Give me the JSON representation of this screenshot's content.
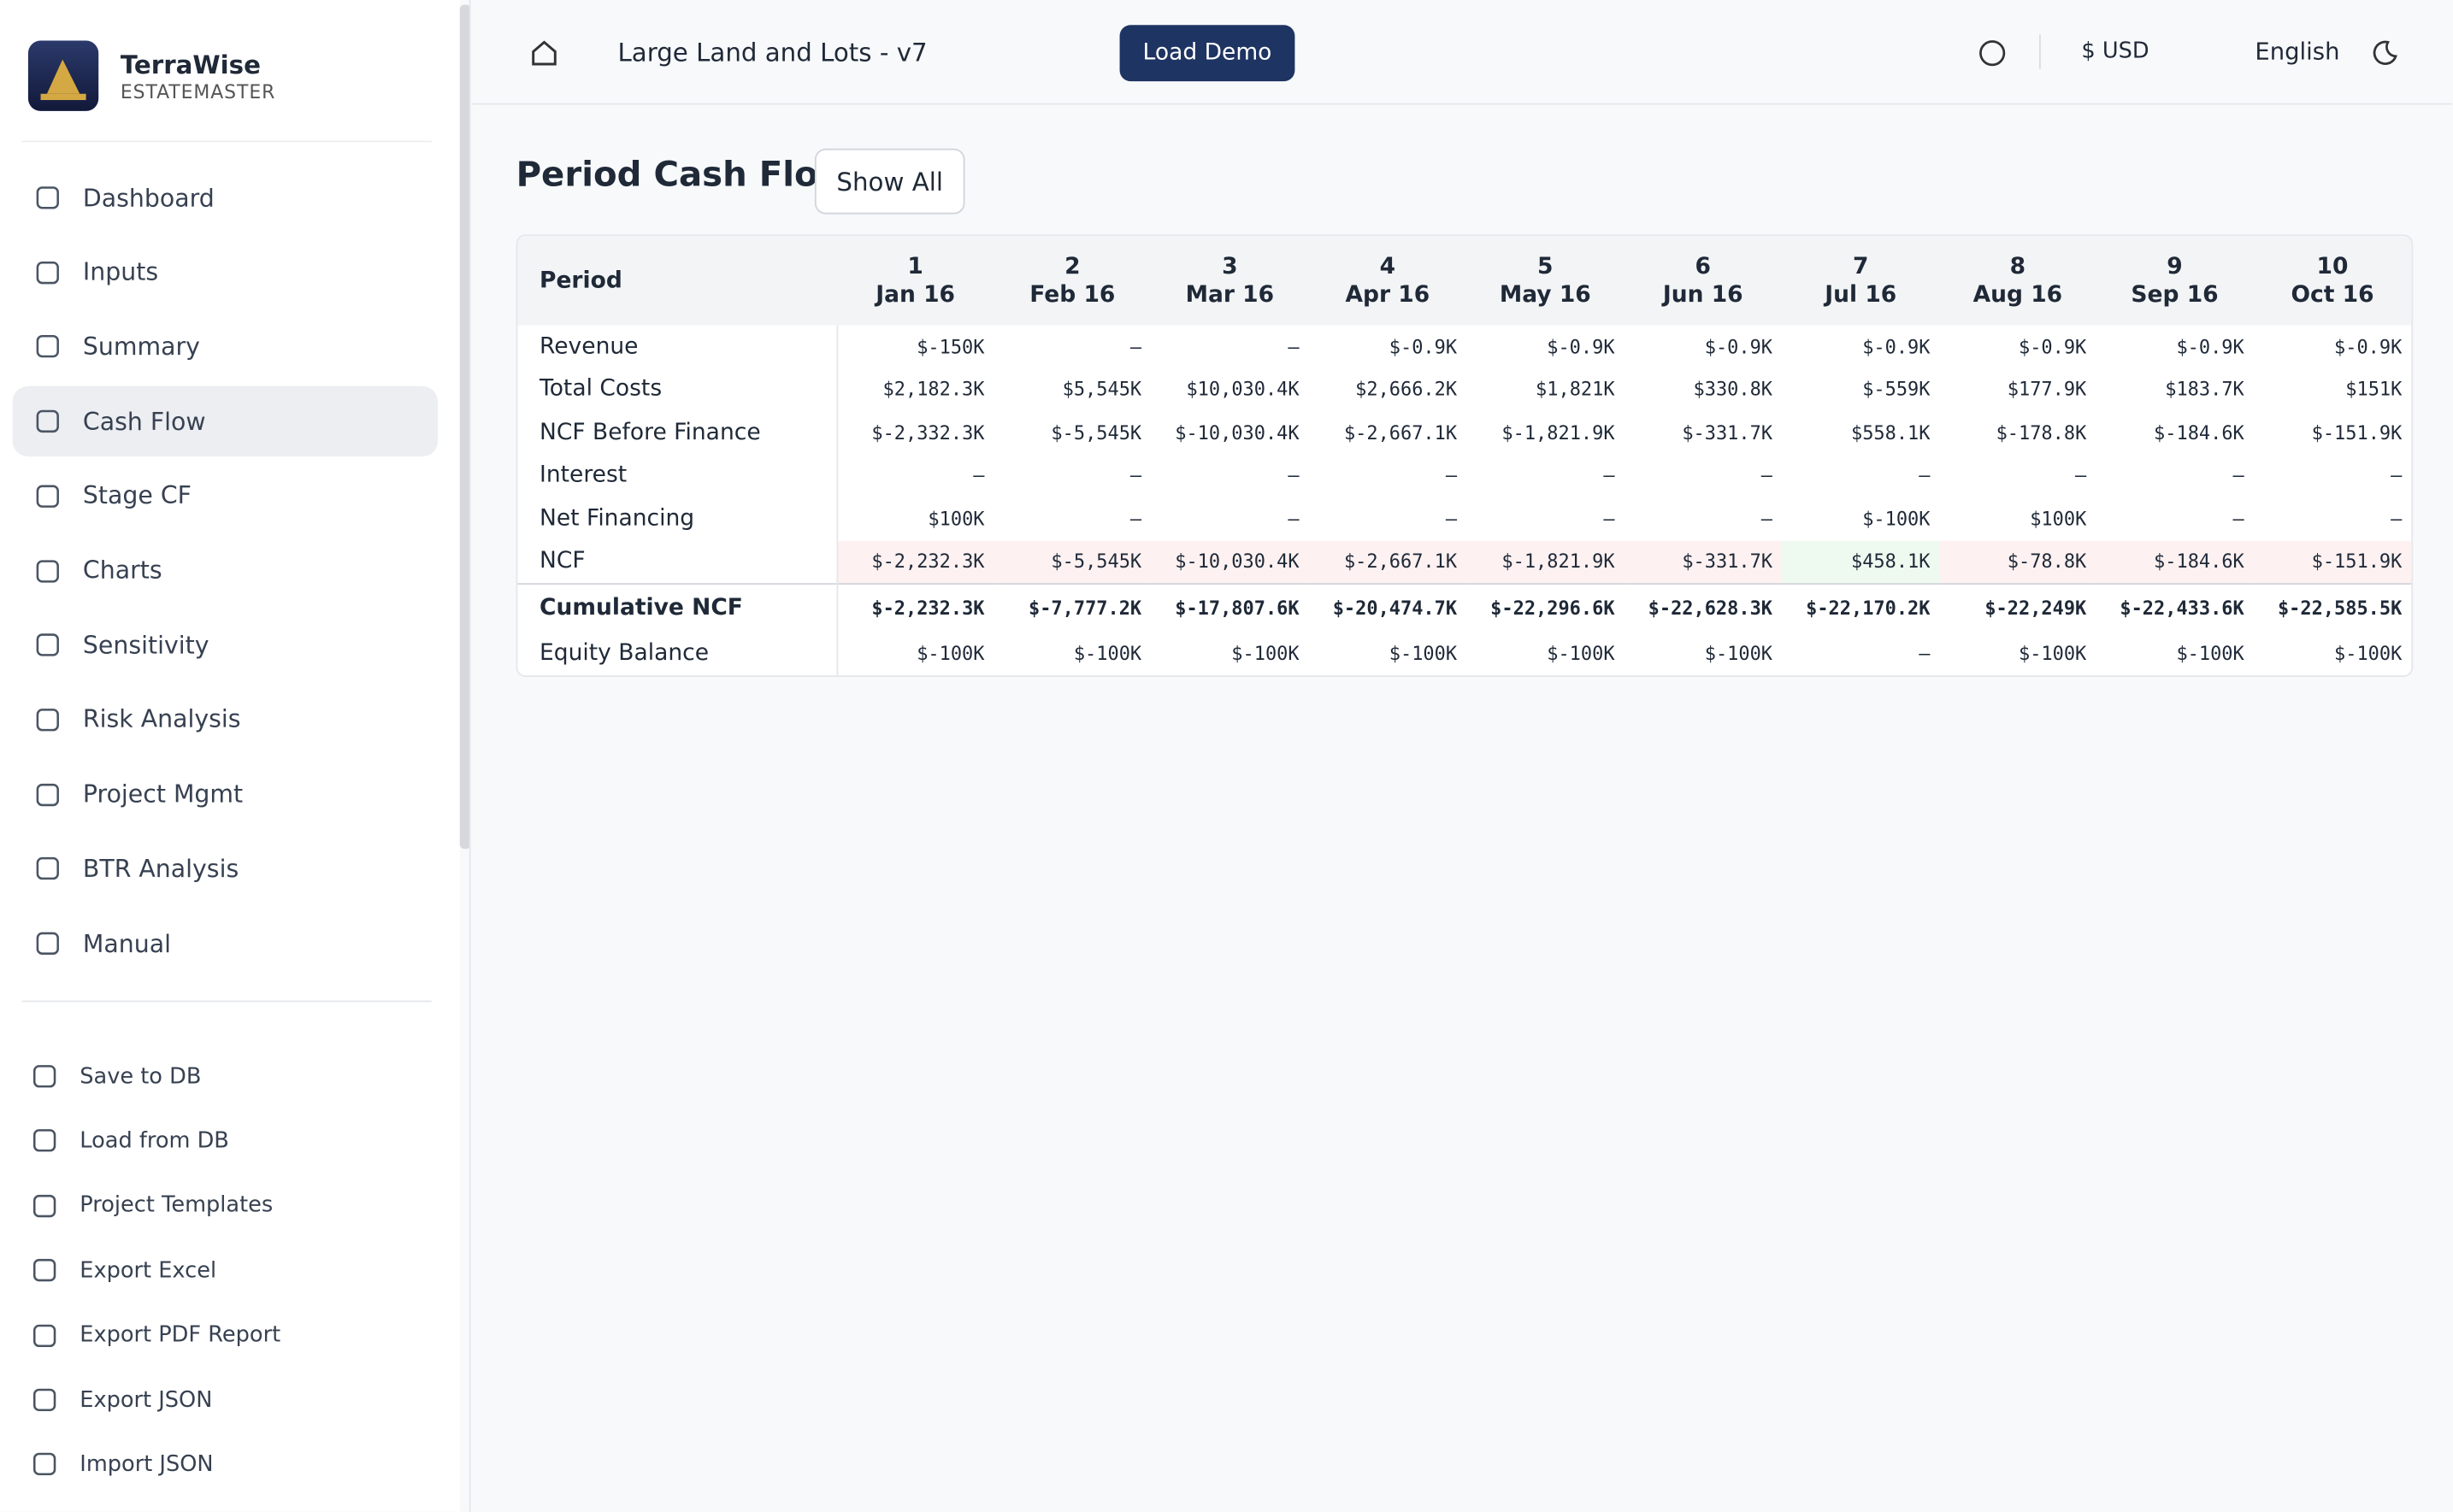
{
  "brand": {
    "name": "TerraWise",
    "subtitle": "ESTATEMASTER"
  },
  "nav": {
    "items": [
      "Dashboard",
      "Inputs",
      "Summary",
      "Cash Flow",
      "Stage CF",
      "Charts",
      "Sensitivity",
      "Risk Analysis",
      "Project Mgmt",
      "BTR Analysis",
      "Manual"
    ],
    "active": 3
  },
  "actions": [
    "Save to DB",
    "Load from DB",
    "Project Templates",
    "Export Excel",
    "Export PDF Report",
    "Export JSON",
    "Import JSON"
  ],
  "header": {
    "project": "Large Land and Lots - v7",
    "load_demo": "Load Demo",
    "currency": "$ USD",
    "language": "English"
  },
  "section": {
    "title": "Period Cash Flow",
    "button": "Show All"
  },
  "table": {
    "header_label": "Period",
    "columns": [
      {
        "period": "1",
        "date": "Jan 16"
      },
      {
        "period": "2",
        "date": "Feb 16"
      },
      {
        "period": "3",
        "date": "Mar 16"
      },
      {
        "period": "4",
        "date": "Apr 16"
      },
      {
        "period": "5",
        "date": "May 16"
      },
      {
        "period": "6",
        "date": "Jun 16"
      },
      {
        "period": "7",
        "date": "Jul 16"
      },
      {
        "period": "8",
        "date": "Aug 16"
      },
      {
        "period": "9",
        "date": "Sep 16"
      },
      {
        "period": "10",
        "date": "Oct 16"
      }
    ],
    "rows": [
      {
        "label": "Revenue",
        "cells": [
          "$-150K",
          "–",
          "–",
          "$-0.9K",
          "$-0.9K",
          "$-0.9K",
          "$-0.9K",
          "$-0.9K",
          "$-0.9K",
          "$-0.9K"
        ]
      },
      {
        "label": "Total Costs",
        "cells": [
          "$2,182.3K",
          "$5,545K",
          "$10,030.4K",
          "$2,666.2K",
          "$1,821K",
          "$330.8K",
          "$-559K",
          "$177.9K",
          "$183.7K",
          "$151K"
        ]
      },
      {
        "label": "NCF Before Finance",
        "cells": [
          "$-2,332.3K",
          "$-5,545K",
          "$-10,030.4K",
          "$-2,667.1K",
          "$-1,821.9K",
          "$-331.7K",
          "$558.1K",
          "$-178.8K",
          "$-184.6K",
          "$-151.9K"
        ]
      },
      {
        "label": "Interest",
        "cells": [
          "–",
          "–",
          "–",
          "–",
          "–",
          "–",
          "–",
          "–",
          "–",
          "–"
        ]
      },
      {
        "label": "Net Financing",
        "cells": [
          "$100K",
          "–",
          "–",
          "–",
          "–",
          "–",
          "$-100K",
          "$100K",
          "–",
          "–"
        ]
      },
      {
        "label": "NCF",
        "cells": [
          "$-2,232.3K",
          "$-5,545K",
          "$-10,030.4K",
          "$-2,667.1K",
          "$-1,821.9K",
          "$-331.7K",
          "$458.1K",
          "$-78.8K",
          "$-184.6K",
          "$-151.9K"
        ]
      },
      {
        "label": "Cumulative NCF",
        "cells": [
          "$-2,232.3K",
          "$-7,777.2K",
          "$-17,807.6K",
          "$-20,474.7K",
          "$-22,296.6K",
          "$-22,628.3K",
          "$-22,170.2K",
          "$-22,249K",
          "$-22,433.6K",
          "$-22,585.5K"
        ]
      },
      {
        "label": "Equity Balance",
        "cells": [
          "$-100K",
          "$-100K",
          "$-100K",
          "$-100K",
          "$-100K",
          "$-100K",
          "–",
          "$-100K",
          "$-100K",
          "$-100K"
        ]
      }
    ],
    "highlight_row": 5,
    "bold_row": 6
  }
}
